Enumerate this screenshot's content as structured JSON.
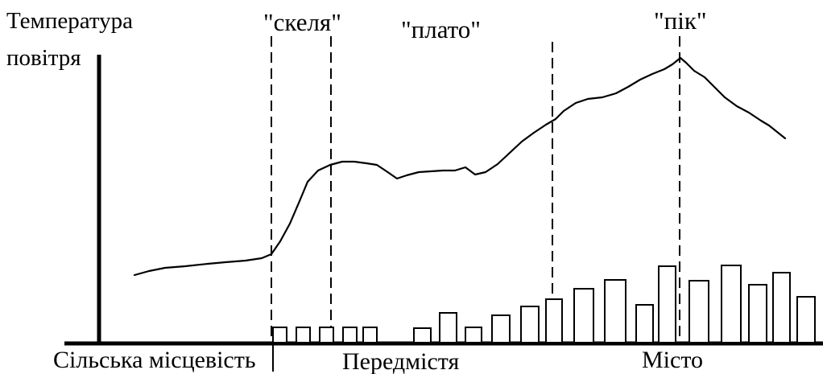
{
  "axis": {
    "y_label_line1": "Температура",
    "y_label_line2": "повітря"
  },
  "zones": {
    "cliff": "\"скеля\"",
    "plateau": "\"плато\"",
    "peak": "\"пік\""
  },
  "regions": {
    "rural": "Сільська місцевість",
    "suburb": "Передмістя",
    "city": "Місто"
  },
  "colors": {
    "line": "#000000",
    "background": "#ffffff"
  }
}
